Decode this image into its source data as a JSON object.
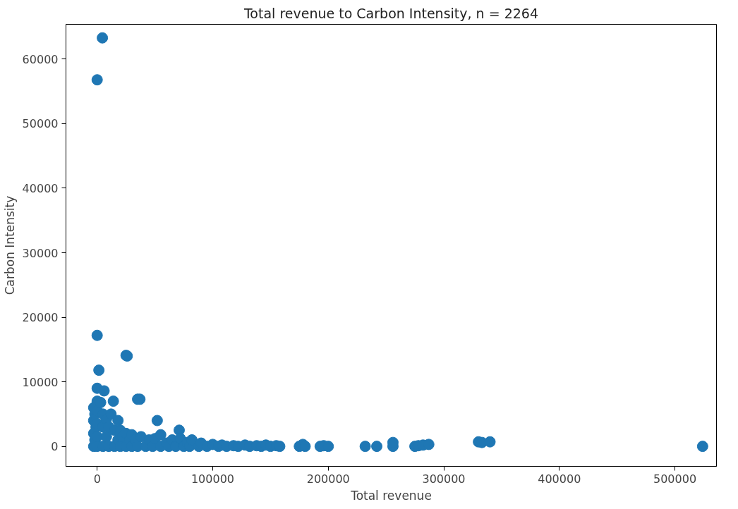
{
  "chart_data": {
    "type": "scatter",
    "title": "Total revenue to Carbon Intensity, n = 2264",
    "xlabel": "Total revenue",
    "ylabel": "Carbon Intensity",
    "xlim": [
      -27000,
      536000
    ],
    "ylim": [
      -3100,
      65400
    ],
    "xticks": [
      0,
      100000,
      200000,
      300000,
      400000,
      500000
    ],
    "yticks": [
      0,
      10000,
      20000,
      30000,
      40000,
      50000,
      60000
    ],
    "grid": false,
    "marker": "circle",
    "series": [
      {
        "color": "#1f77b4",
        "x": [
          4500,
          0,
          0,
          25000,
          26000,
          1500,
          0,
          6000,
          0,
          35000,
          37000,
          14000,
          52000,
          71000,
          -3000,
          -3000,
          -3000,
          -3000,
          -2000,
          -2000,
          -1000,
          0,
          0,
          0,
          0,
          3000,
          5000,
          5000,
          5000,
          8000,
          8000,
          10000,
          10000,
          12000,
          15000,
          15000,
          18000,
          18000,
          20000,
          20000,
          22000,
          25000,
          25000,
          28000,
          30000,
          30000,
          33000,
          35000,
          38000,
          42000,
          45000,
          48000,
          50000,
          55000,
          55000,
          60000,
          62000,
          65000,
          68000,
          72000,
          75000,
          78000,
          80000,
          82000,
          88000,
          90000,
          95000,
          100000,
          105000,
          108000,
          112000,
          118000,
          122000,
          128000,
          132000,
          138000,
          142000,
          146000,
          150000,
          155000,
          158000,
          175000,
          178000,
          180000,
          193000,
          196000,
          200000,
          232000,
          242000,
          256000,
          256000,
          275000,
          278000,
          282000,
          287000,
          330000,
          333000,
          340000,
          524000
        ],
        "values": [
          63300,
          56800,
          17200,
          14100,
          14000,
          11800,
          9000,
          8600,
          7000,
          7300,
          7300,
          7000,
          4000,
          2500,
          0,
          2000,
          4000,
          6000,
          1000,
          5000,
          3000,
          0,
          1500,
          3500,
          5500,
          6800,
          0,
          3000,
          5000,
          1500,
          4200,
          0,
          3000,
          5000,
          0,
          2500,
          1000,
          4000,
          0,
          2500,
          1500,
          0,
          2000,
          1000,
          0,
          1800,
          1000,
          0,
          1500,
          0,
          1000,
          0,
          1200,
          0,
          1800,
          500,
          0,
          1000,
          0,
          1200,
          0,
          600,
          0,
          1000,
          0,
          500,
          0,
          300,
          0,
          200,
          0,
          100,
          0,
          200,
          0,
          100,
          0,
          200,
          0,
          100,
          0,
          0,
          300,
          0,
          0,
          100,
          0,
          0,
          0,
          0,
          600,
          0,
          100,
          200,
          300,
          700,
          600,
          700,
          0
        ]
      }
    ]
  }
}
